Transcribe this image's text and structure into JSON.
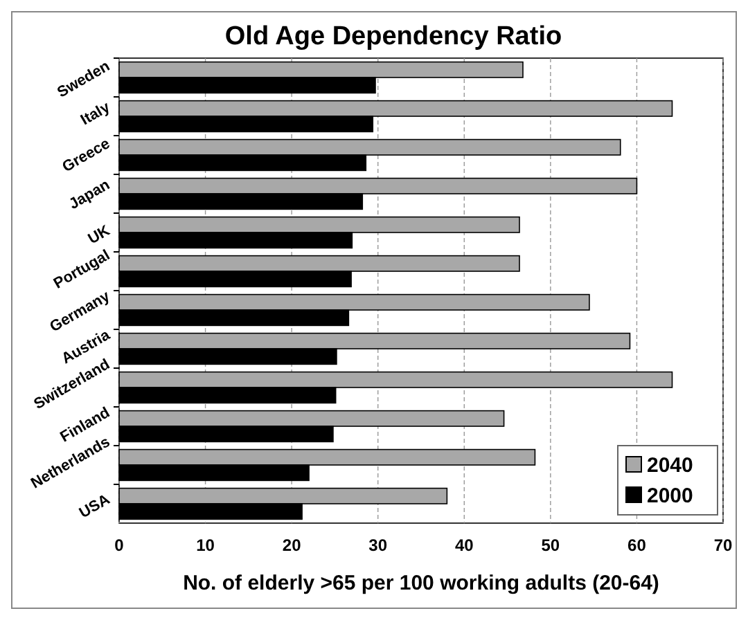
{
  "chart_data": {
    "type": "bar",
    "orientation": "horizontal",
    "title": "Old Age Dependency Ratio",
    "xlabel": "No. of elderly >65 per 100 working adults (20-64)",
    "categories": [
      "Sweden",
      "Italy",
      "Greece",
      "Japan",
      "UK",
      "Portugal",
      "Germany",
      "Austria",
      "Switzerland",
      "Finland",
      "Netherlands",
      "USA"
    ],
    "series": [
      {
        "name": "2040",
        "color": "#a8a8a8",
        "values": [
          46.8,
          64.1,
          58.1,
          60.0,
          46.4,
          46.4,
          54.5,
          59.2,
          64.1,
          44.6,
          48.2,
          38.0
        ]
      },
      {
        "name": "2000",
        "color": "#000000",
        "values": [
          29.7,
          29.4,
          28.6,
          28.2,
          27.0,
          26.9,
          26.6,
          25.2,
          25.1,
          24.8,
          22.0,
          21.2
        ]
      }
    ],
    "xlim": [
      0,
      70
    ],
    "xticks": [
      0,
      10,
      20,
      30,
      40,
      50,
      60,
      70
    ],
    "grid": "x",
    "legend": "bottom right"
  }
}
